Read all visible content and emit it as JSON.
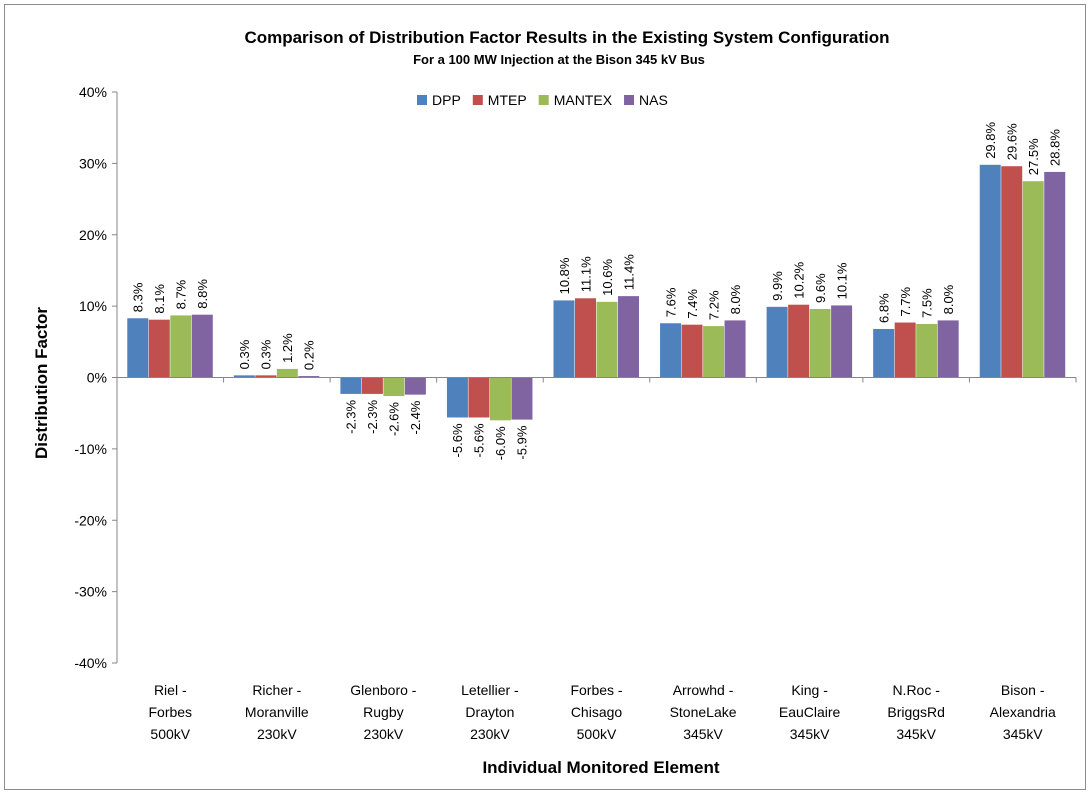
{
  "chart_data": {
    "type": "bar",
    "title": "Comparison of Distribution Factor Results in the Existing System Configuration",
    "subtitle": "For a 100 MW Injection at the Bison 345 kV Bus",
    "xlabel": "Individual Monitored Element",
    "ylabel": "Distribution Factor",
    "ylim": [
      -40,
      40
    ],
    "y_ticks": [
      "-40%",
      "-30%",
      "-20%",
      "-10%",
      "0%",
      "10%",
      "20%",
      "30%",
      "40%"
    ],
    "y_tick_values": [
      -40,
      -30,
      -20,
      -10,
      0,
      10,
      20,
      30,
      40
    ],
    "grid": false,
    "legend_position": "top",
    "categories": [
      [
        "Riel -",
        "Forbes",
        "500kV"
      ],
      [
        "Richer -",
        "Moranville",
        "230kV"
      ],
      [
        "Glenboro -",
        "Rugby",
        "230kV"
      ],
      [
        "Letellier -",
        "Drayton",
        "230kV"
      ],
      [
        "Forbes -",
        "Chisago",
        "500kV"
      ],
      [
        "Arrowhd -",
        "StoneLake",
        "345kV"
      ],
      [
        "King -",
        "EauClaire",
        "345kV"
      ],
      [
        "N.Roc -",
        "BriggsRd",
        "345kV"
      ],
      [
        "Bison -",
        "Alexandria",
        "345kV"
      ]
    ],
    "series": [
      {
        "name": "DPP",
        "color": "#4f81bd",
        "values": [
          8.3,
          0.3,
          -2.3,
          -5.6,
          10.8,
          7.6,
          9.9,
          6.8,
          29.8
        ],
        "labels": [
          "8.3%",
          "0.3%",
          "-2.3%",
          "-5.6%",
          "10.8%",
          "7.6%",
          "9.9%",
          "6.8%",
          "29.8%"
        ]
      },
      {
        "name": "MTEP",
        "color": "#c0504d",
        "values": [
          8.1,
          0.3,
          -2.3,
          -5.6,
          11.1,
          7.4,
          10.2,
          7.7,
          29.6
        ],
        "labels": [
          "8.1%",
          "0.3%",
          "-2.3%",
          "-5.6%",
          "11.1%",
          "7.4%",
          "10.2%",
          "7.7%",
          "29.6%"
        ]
      },
      {
        "name": "MANTEX",
        "color": "#9bbb59",
        "values": [
          8.7,
          1.2,
          -2.6,
          -6.0,
          10.6,
          7.2,
          9.6,
          7.5,
          27.5
        ],
        "labels": [
          "8.7%",
          "1.2%",
          "-2.6%",
          "-6.0%",
          "10.6%",
          "7.2%",
          "9.6%",
          "7.5%",
          "27.5%"
        ]
      },
      {
        "name": "NAS",
        "color": "#8064a2",
        "values": [
          8.8,
          0.2,
          -2.4,
          -5.9,
          11.4,
          8.0,
          10.1,
          8.0,
          28.8
        ],
        "labels": [
          "8.8%",
          "0.2%",
          "-2.4%",
          "-5.9%",
          "11.4%",
          "8.0%",
          "10.1%",
          "8.0%",
          "28.8%"
        ]
      }
    ]
  }
}
